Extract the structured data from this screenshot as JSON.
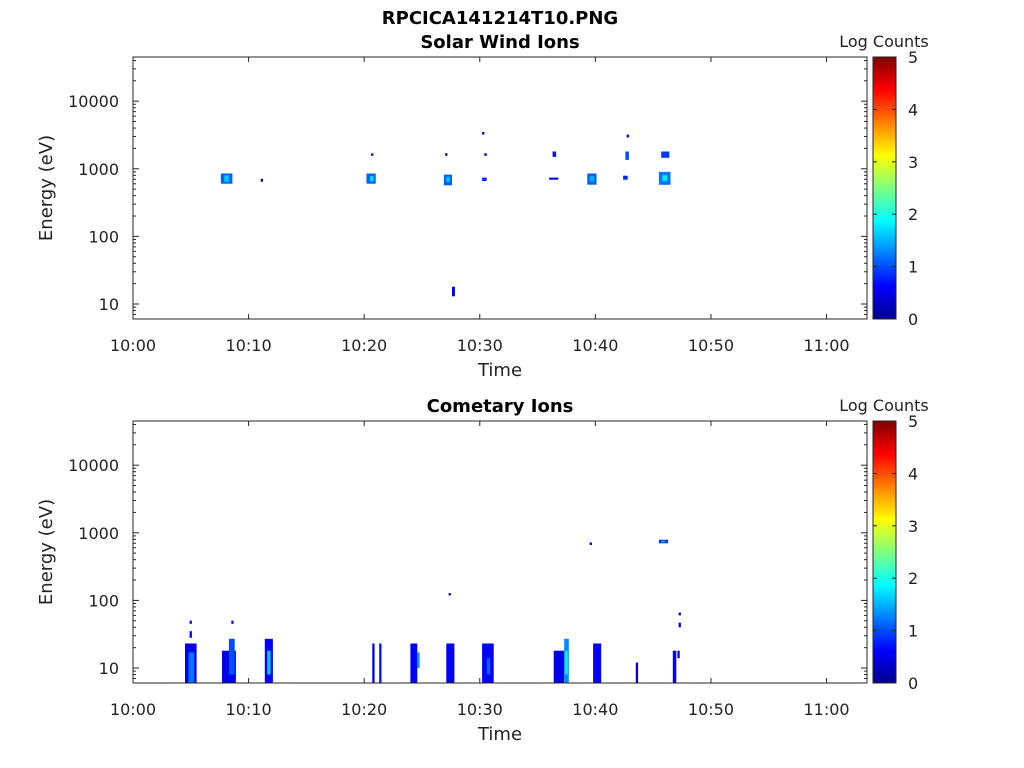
{
  "figure": {
    "title": "RPCICA141214T10.PNG"
  },
  "chart_data": [
    {
      "type": "heatmap",
      "title": "Solar Wind Ions",
      "xlabel": "Time",
      "ylabel": "Energy (eV)",
      "colorbar_label": "Log Counts",
      "colorbar_ticks": [
        "0",
        "1",
        "2",
        "3",
        "4",
        "5"
      ],
      "clim": [
        0,
        5
      ],
      "colormap": "jet",
      "x_ticks": [
        "10:00",
        "10:10",
        "10:20",
        "10:30",
        "10:40",
        "10:50",
        "11:00"
      ],
      "x_tick_minutes": [
        0,
        10,
        20,
        30,
        40,
        50,
        60
      ],
      "xlim_minutes": [
        0,
        63.5
      ],
      "y_ticks": [
        "10",
        "100",
        "1000",
        "10000"
      ],
      "y_tick_values": [
        10,
        100,
        1000,
        10000
      ],
      "ylim": [
        6,
        45000
      ],
      "yscale": "log",
      "patches": [
        {
          "t0": 7.6,
          "t1": 8.6,
          "e0": 600,
          "e1": 850,
          "v": 1.1
        },
        {
          "t0": 7.9,
          "t1": 8.3,
          "e0": 640,
          "e1": 800,
          "v": 1.6
        },
        {
          "t0": 11.05,
          "t1": 11.25,
          "e0": 640,
          "e1": 710,
          "v": 0.6
        },
        {
          "t0": 20.2,
          "t1": 21.0,
          "e0": 600,
          "e1": 850,
          "v": 1.1
        },
        {
          "t0": 20.5,
          "t1": 20.8,
          "e0": 650,
          "e1": 780,
          "v": 1.7
        },
        {
          "t0": 20.6,
          "t1": 20.8,
          "e0": 1550,
          "e1": 1700,
          "v": 0.8
        },
        {
          "t0": 26.9,
          "t1": 27.6,
          "e0": 570,
          "e1": 820,
          "v": 1.1
        },
        {
          "t0": 27.1,
          "t1": 27.4,
          "e0": 640,
          "e1": 760,
          "v": 1.6
        },
        {
          "t0": 27.0,
          "t1": 27.2,
          "e0": 1550,
          "e1": 1700,
          "v": 0.6
        },
        {
          "t0": 27.6,
          "t1": 27.85,
          "e0": 13,
          "e1": 18,
          "v": 0.4
        },
        {
          "t0": 30.2,
          "t1": 30.4,
          "e0": 3200,
          "e1": 3500,
          "v": 0.4
        },
        {
          "t0": 30.4,
          "t1": 30.6,
          "e0": 1550,
          "e1": 1700,
          "v": 0.5
        },
        {
          "t0": 30.2,
          "t1": 30.6,
          "e0": 660,
          "e1": 740,
          "v": 0.8
        },
        {
          "t0": 36.3,
          "t1": 36.6,
          "e0": 1500,
          "e1": 1800,
          "v": 0.7
        },
        {
          "t0": 36.0,
          "t1": 36.8,
          "e0": 690,
          "e1": 740,
          "v": 0.6
        },
        {
          "t0": 39.3,
          "t1": 40.1,
          "e0": 580,
          "e1": 850,
          "v": 1.1
        },
        {
          "t0": 39.5,
          "t1": 39.9,
          "e0": 650,
          "e1": 780,
          "v": 1.5
        },
        {
          "t0": 42.4,
          "t1": 42.8,
          "e0": 690,
          "e1": 790,
          "v": 0.8
        },
        {
          "t0": 42.6,
          "t1": 42.9,
          "e0": 1350,
          "e1": 1800,
          "v": 1.0
        },
        {
          "t0": 42.7,
          "t1": 42.9,
          "e0": 2900,
          "e1": 3200,
          "v": 0.4
        },
        {
          "t0": 45.5,
          "t1": 46.5,
          "e0": 580,
          "e1": 900,
          "v": 1.2
        },
        {
          "t0": 45.8,
          "t1": 46.2,
          "e0": 660,
          "e1": 800,
          "v": 1.8
        },
        {
          "t0": 45.7,
          "t1": 46.4,
          "e0": 1450,
          "e1": 1800,
          "v": 0.9
        }
      ]
    },
    {
      "type": "heatmap",
      "title": "Cometary Ions",
      "xlabel": "Time",
      "ylabel": "Energy (eV)",
      "colorbar_label": "Log Counts",
      "colorbar_ticks": [
        "0",
        "1",
        "2",
        "3",
        "4",
        "5"
      ],
      "clim": [
        0,
        5
      ],
      "colormap": "jet",
      "x_ticks": [
        "10:00",
        "10:10",
        "10:20",
        "10:30",
        "10:40",
        "10:50",
        "11:00"
      ],
      "x_tick_minutes": [
        0,
        10,
        20,
        30,
        40,
        50,
        60
      ],
      "xlim_minutes": [
        0,
        63.5
      ],
      "y_ticks": [
        "10",
        "100",
        "1000",
        "10000"
      ],
      "y_tick_values": [
        10,
        100,
        1000,
        10000
      ],
      "ylim": [
        6,
        45000
      ],
      "yscale": "log",
      "patches": [
        {
          "t0": 4.5,
          "t1": 5.5,
          "e0": 6,
          "e1": 23,
          "v": 0.5
        },
        {
          "t0": 4.8,
          "t1": 5.3,
          "e0": 6,
          "e1": 17,
          "v": 1.2
        },
        {
          "t0": 4.9,
          "t1": 5.1,
          "e0": 28,
          "e1": 35,
          "v": 0.6
        },
        {
          "t0": 4.9,
          "t1": 5.1,
          "e0": 45,
          "e1": 50,
          "v": 0.6
        },
        {
          "t0": 7.7,
          "t1": 8.9,
          "e0": 6,
          "e1": 18,
          "v": 0.5
        },
        {
          "t0": 8.3,
          "t1": 8.8,
          "e0": 8,
          "e1": 27,
          "v": 1.0
        },
        {
          "t0": 8.5,
          "t1": 8.7,
          "e0": 45,
          "e1": 50,
          "v": 0.6
        },
        {
          "t0": 11.4,
          "t1": 12.1,
          "e0": 6,
          "e1": 27,
          "v": 0.6
        },
        {
          "t0": 11.6,
          "t1": 11.9,
          "e0": 8,
          "e1": 18,
          "v": 1.6
        },
        {
          "t0": 20.7,
          "t1": 20.9,
          "e0": 6,
          "e1": 23,
          "v": 0.5
        },
        {
          "t0": 21.3,
          "t1": 21.5,
          "e0": 6,
          "e1": 23,
          "v": 0.7
        },
        {
          "t0": 24.0,
          "t1": 24.6,
          "e0": 6,
          "e1": 23,
          "v": 0.6
        },
        {
          "t0": 24.6,
          "t1": 24.8,
          "e0": 10,
          "e1": 17,
          "v": 1.4
        },
        {
          "t0": 27.1,
          "t1": 27.8,
          "e0": 6,
          "e1": 23,
          "v": 0.6
        },
        {
          "t0": 27.3,
          "t1": 27.5,
          "e0": 118,
          "e1": 128,
          "v": 0.4
        },
        {
          "t0": 30.2,
          "t1": 31.2,
          "e0": 6,
          "e1": 23,
          "v": 0.6
        },
        {
          "t0": 30.6,
          "t1": 30.9,
          "e0": 8,
          "e1": 14,
          "v": 1.1
        },
        {
          "t0": 36.4,
          "t1": 37.3,
          "e0": 6,
          "e1": 18,
          "v": 0.5
        },
        {
          "t0": 37.3,
          "t1": 37.7,
          "e0": 6,
          "e1": 27,
          "v": 1.3
        },
        {
          "t0": 37.4,
          "t1": 37.6,
          "e0": 8,
          "e1": 18,
          "v": 1.9
        },
        {
          "t0": 39.8,
          "t1": 40.5,
          "e0": 6,
          "e1": 23,
          "v": 0.6
        },
        {
          "t0": 43.5,
          "t1": 43.7,
          "e0": 6,
          "e1": 12,
          "v": 0.3
        },
        {
          "t0": 39.5,
          "t1": 39.7,
          "e0": 660,
          "e1": 720,
          "v": 0.4
        },
        {
          "t0": 45.5,
          "t1": 46.3,
          "e0": 700,
          "e1": 790,
          "v": 0.9
        },
        {
          "t0": 45.7,
          "t1": 46.0,
          "e0": 720,
          "e1": 770,
          "v": 1.5
        },
        {
          "t0": 46.7,
          "t1": 47.0,
          "e0": 6,
          "e1": 18,
          "v": 0.6
        },
        {
          "t0": 47.1,
          "t1": 47.3,
          "e0": 14,
          "e1": 18,
          "v": 0.5
        },
        {
          "t0": 47.2,
          "t1": 47.4,
          "e0": 40,
          "e1": 47,
          "v": 0.5
        },
        {
          "t0": 47.2,
          "t1": 47.4,
          "e0": 60,
          "e1": 66,
          "v": 0.4
        }
      ]
    }
  ]
}
